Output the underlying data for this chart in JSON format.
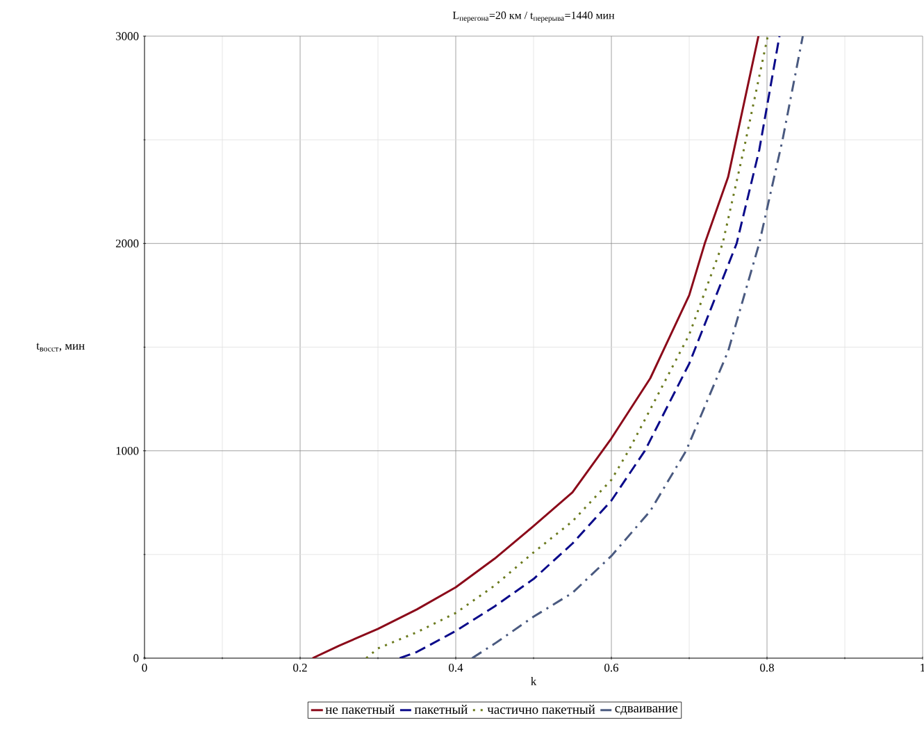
{
  "chart_data": {
    "type": "line",
    "title": "L$_{перегона}$=20 км /  t$_{перерыва}$=1440 мин",
    "xlabel": "k",
    "ylabel": "t$_{восст}$, мин",
    "xlim": [
      0,
      1
    ],
    "ylim": [
      0,
      3000
    ],
    "xticks": [
      0,
      0.2,
      0.4,
      0.6,
      0.8,
      1
    ],
    "yticks": [
      0,
      1000,
      2000,
      3000
    ],
    "grid": true,
    "legend": "bottom",
    "series": [
      {
        "name": "не пакетный",
        "color": "#8b0a1a",
        "line_style": "solid",
        "x": [
          0.216,
          0.25,
          0.3,
          0.35,
          0.4,
          0.45,
          0.5,
          0.55,
          0.6,
          0.65,
          0.7,
          0.72,
          0.75,
          0.789
        ],
        "values": [
          0,
          60,
          141,
          235,
          342,
          480,
          637,
          800,
          1060,
          1350,
          1750,
          2000,
          2320,
          3000
        ]
      },
      {
        "name": "пакетный",
        "color": "#0a0a8a",
        "line_style": "dashed",
        "x": [
          0.328,
          0.35,
          0.4,
          0.45,
          0.5,
          0.55,
          0.6,
          0.643,
          0.7,
          0.761,
          0.79,
          0.816
        ],
        "values": [
          0,
          30,
          131,
          250,
          382,
          553,
          760,
          1000,
          1420,
          2000,
          2450,
          3000
        ]
      },
      {
        "name": "частично пакетный",
        "color": "#6b7a1e",
        "line_style": "dotted",
        "x": [
          0.285,
          0.3,
          0.35,
          0.4,
          0.45,
          0.5,
          0.55,
          0.6,
          0.622,
          0.65,
          0.7,
          0.743,
          0.77,
          0.801
        ],
        "values": [
          0,
          47,
          125,
          218,
          350,
          510,
          660,
          860,
          1000,
          1200,
          1560,
          2000,
          2450,
          3000
        ]
      },
      {
        "name": "сдваивание",
        "color": "#4a5a80",
        "line_style": "dashdotted",
        "x": [
          0.421,
          0.45,
          0.5,
          0.55,
          0.6,
          0.65,
          0.696,
          0.75,
          0.79,
          0.82,
          0.846
        ],
        "values": [
          0,
          70,
          200,
          315,
          493,
          710,
          1000,
          1480,
          2000,
          2500,
          3000
        ]
      }
    ]
  }
}
